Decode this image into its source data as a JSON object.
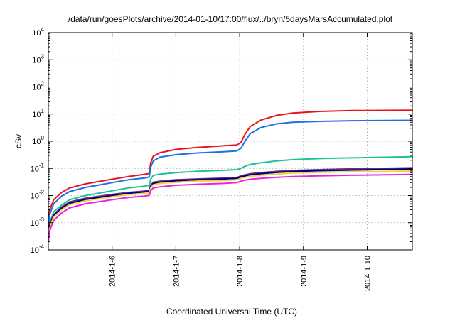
{
  "chart_data": {
    "type": "line",
    "title": "/data/run/goesPlots/archive/2014-01-10/17:00/flux/../bryn/5daysMarsAccumulated.plot",
    "xlabel": "Coordinated Universal Time (UTC)",
    "ylabel": "cSv",
    "yscale": "log",
    "ylim": [
      0.0001,
      10000
    ],
    "xlim": [
      "2014-01-05 00:00",
      "2014-01-10 17:00"
    ],
    "x_ticks": [
      "2014-1-6",
      "2014-1-7",
      "2014-1-8",
      "2014-1-9",
      "2014-1-10"
    ],
    "y_ticks": [
      {
        "base": "10",
        "exp": "-4",
        "value": 0.0001
      },
      {
        "base": "10",
        "exp": "-3",
        "value": 0.001
      },
      {
        "base": "10",
        "exp": "-2",
        "value": 0.01
      },
      {
        "base": "10",
        "exp": "-1",
        "value": 0.1
      },
      {
        "base": "10",
        "exp": "0",
        "value": 1
      },
      {
        "base": "10",
        "exp": "1",
        "value": 10
      },
      {
        "base": "10",
        "exp": "2",
        "value": 100
      },
      {
        "base": "10",
        "exp": "3",
        "value": 1000
      },
      {
        "base": "10",
        "exp": "4",
        "value": 10000
      }
    ],
    "grid": true,
    "series": [
      {
        "color": "#e8141b",
        "points": [
          [
            "2014-01-05 00:00",
            0.0012
          ],
          [
            "2014-01-05 00:30",
            0.003
          ],
          [
            "2014-01-05 02:00",
            0.007
          ],
          [
            "2014-01-05 05:00",
            0.013
          ],
          [
            "2014-01-05 08:00",
            0.019
          ],
          [
            "2014-01-05 14:00",
            0.027
          ],
          [
            "2014-01-06 00:00",
            0.04
          ],
          [
            "2014-01-06 06:00",
            0.05
          ],
          [
            "2014-01-06 12:00",
            0.06
          ],
          [
            "2014-01-06 14:00",
            0.065
          ],
          [
            "2014-01-06 14:30",
            0.16
          ],
          [
            "2014-01-06 15:30",
            0.28
          ],
          [
            "2014-01-06 18:00",
            0.38
          ],
          [
            "2014-01-07 00:00",
            0.5
          ],
          [
            "2014-01-07 08:00",
            0.59
          ],
          [
            "2014-01-07 18:00",
            0.68
          ],
          [
            "2014-01-07 23:00",
            0.73
          ],
          [
            "2014-01-08 00:30",
            0.9
          ],
          [
            "2014-01-08 02:00",
            1.8
          ],
          [
            "2014-01-08 04:00",
            3.5
          ],
          [
            "2014-01-08 08:00",
            6.0
          ],
          [
            "2014-01-08 14:00",
            9.0
          ],
          [
            "2014-01-08 20:00",
            11.0
          ],
          [
            "2014-01-09 06:00",
            12.5
          ],
          [
            "2014-01-09 18:00",
            13.5
          ],
          [
            "2014-01-10 17:00",
            14.0
          ]
        ]
      },
      {
        "color": "#1f6fe5",
        "points": [
          [
            "2014-01-05 00:00",
            0.0008
          ],
          [
            "2014-01-05 00:30",
            0.002
          ],
          [
            "2014-01-05 02:00",
            0.005
          ],
          [
            "2014-01-05 05:00",
            0.0095
          ],
          [
            "2014-01-05 08:00",
            0.014
          ],
          [
            "2014-01-05 14:00",
            0.02
          ],
          [
            "2014-01-06 00:00",
            0.03
          ],
          [
            "2014-01-06 06:00",
            0.038
          ],
          [
            "2014-01-06 12:00",
            0.044
          ],
          [
            "2014-01-06 14:00",
            0.048
          ],
          [
            "2014-01-06 14:30",
            0.11
          ],
          [
            "2014-01-06 15:30",
            0.19
          ],
          [
            "2014-01-06 18:00",
            0.26
          ],
          [
            "2014-01-07 00:00",
            0.32
          ],
          [
            "2014-01-07 08:00",
            0.37
          ],
          [
            "2014-01-07 18:00",
            0.41
          ],
          [
            "2014-01-07 23:00",
            0.44
          ],
          [
            "2014-01-08 00:30",
            0.55
          ],
          [
            "2014-01-08 02:00",
            1.0
          ],
          [
            "2014-01-08 04:00",
            1.9
          ],
          [
            "2014-01-08 08:00",
            3.2
          ],
          [
            "2014-01-08 14:00",
            4.4
          ],
          [
            "2014-01-08 20:00",
            5.0
          ],
          [
            "2014-01-09 06:00",
            5.4
          ],
          [
            "2014-01-09 18:00",
            5.7
          ],
          [
            "2014-01-10 17:00",
            5.9
          ]
        ]
      },
      {
        "color": "#19c49a",
        "points": [
          [
            "2014-01-05 00:00",
            0.0004
          ],
          [
            "2014-01-05 00:30",
            0.001
          ],
          [
            "2014-01-05 02:00",
            0.0025
          ],
          [
            "2014-01-05 05:00",
            0.0045
          ],
          [
            "2014-01-05 08:00",
            0.007
          ],
          [
            "2014-01-05 14:00",
            0.01
          ],
          [
            "2014-01-06 00:00",
            0.015
          ],
          [
            "2014-01-06 06:00",
            0.019
          ],
          [
            "2014-01-06 12:00",
            0.022
          ],
          [
            "2014-01-06 14:00",
            0.024
          ],
          [
            "2014-01-06 14:30",
            0.04
          ],
          [
            "2014-01-06 15:30",
            0.055
          ],
          [
            "2014-01-06 18:00",
            0.062
          ],
          [
            "2014-01-07 00:00",
            0.07
          ],
          [
            "2014-01-07 08:00",
            0.078
          ],
          [
            "2014-01-07 18:00",
            0.085
          ],
          [
            "2014-01-07 23:00",
            0.09
          ],
          [
            "2014-01-08 00:30",
            0.1
          ],
          [
            "2014-01-08 02:00",
            0.12
          ],
          [
            "2014-01-08 04:00",
            0.14
          ],
          [
            "2014-01-08 08:00",
            0.16
          ],
          [
            "2014-01-08 14:00",
            0.19
          ],
          [
            "2014-01-08 20:00",
            0.21
          ],
          [
            "2014-01-09 06:00",
            0.23
          ],
          [
            "2014-01-09 18:00",
            0.245
          ],
          [
            "2014-01-10 17:00",
            0.27
          ]
        ]
      },
      {
        "color": "#6a2a86",
        "points": [
          [
            "2014-01-05 00:00",
            0.0004
          ],
          [
            "2014-01-05 00:30",
            0.0009
          ],
          [
            "2014-01-05 02:00",
            0.002
          ],
          [
            "2014-01-05 05:00",
            0.0038
          ],
          [
            "2014-01-05 08:00",
            0.0058
          ],
          [
            "2014-01-05 14:00",
            0.008
          ],
          [
            "2014-01-06 00:00",
            0.011
          ],
          [
            "2014-01-06 06:00",
            0.013
          ],
          [
            "2014-01-06 12:00",
            0.0145
          ],
          [
            "2014-01-06 14:00",
            0.0155
          ],
          [
            "2014-01-06 14:30",
            0.024
          ],
          [
            "2014-01-06 15:30",
            0.031
          ],
          [
            "2014-01-06 18:00",
            0.034
          ],
          [
            "2014-01-07 00:00",
            0.038
          ],
          [
            "2014-01-07 08:00",
            0.041
          ],
          [
            "2014-01-07 18:00",
            0.044
          ],
          [
            "2014-01-07 23:00",
            0.046
          ],
          [
            "2014-01-08 00:30",
            0.053
          ],
          [
            "2014-01-08 02:00",
            0.058
          ],
          [
            "2014-01-08 04:00",
            0.064
          ],
          [
            "2014-01-08 08:00",
            0.07
          ],
          [
            "2014-01-08 14:00",
            0.078
          ],
          [
            "2014-01-08 20:00",
            0.084
          ],
          [
            "2014-01-09 06:00",
            0.09
          ],
          [
            "2014-01-09 18:00",
            0.096
          ],
          [
            "2014-01-10 17:00",
            0.105
          ]
        ]
      },
      {
        "color": "#000080",
        "points": [
          [
            "2014-01-05 00:00",
            0.00035
          ],
          [
            "2014-01-05 00:30",
            0.0008
          ],
          [
            "2014-01-05 02:00",
            0.0018
          ],
          [
            "2014-01-05 05:00",
            0.0034
          ],
          [
            "2014-01-05 08:00",
            0.0052
          ],
          [
            "2014-01-05 14:00",
            0.0072
          ],
          [
            "2014-01-06 00:00",
            0.01
          ],
          [
            "2014-01-06 06:00",
            0.012
          ],
          [
            "2014-01-06 12:00",
            0.0135
          ],
          [
            "2014-01-06 14:00",
            0.0145
          ],
          [
            "2014-01-06 14:30",
            0.022
          ],
          [
            "2014-01-06 15:30",
            0.028
          ],
          [
            "2014-01-06 18:00",
            0.031
          ],
          [
            "2014-01-07 00:00",
            0.035
          ],
          [
            "2014-01-07 08:00",
            0.038
          ],
          [
            "2014-01-07 18:00",
            0.041
          ],
          [
            "2014-01-07 23:00",
            0.043
          ],
          [
            "2014-01-08 00:30",
            0.049
          ],
          [
            "2014-01-08 02:00",
            0.053
          ],
          [
            "2014-01-08 04:00",
            0.058
          ],
          [
            "2014-01-08 08:00",
            0.064
          ],
          [
            "2014-01-08 14:00",
            0.071
          ],
          [
            "2014-01-08 20:00",
            0.077
          ],
          [
            "2014-01-09 06:00",
            0.082
          ],
          [
            "2014-01-09 18:00",
            0.087
          ],
          [
            "2014-01-10 17:00",
            0.095
          ]
        ]
      },
      {
        "color": "#f2d43a",
        "points": [
          [
            "2014-01-05 00:00",
            0.0003
          ],
          [
            "2014-01-05 00:30",
            0.0007
          ],
          [
            "2014-01-05 02:00",
            0.0016
          ],
          [
            "2014-01-05 05:00",
            0.003
          ],
          [
            "2014-01-05 08:00",
            0.0046
          ],
          [
            "2014-01-05 14:00",
            0.0064
          ],
          [
            "2014-01-06 00:00",
            0.009
          ],
          [
            "2014-01-06 06:00",
            0.0108
          ],
          [
            "2014-01-06 12:00",
            0.012
          ],
          [
            "2014-01-06 14:00",
            0.013
          ],
          [
            "2014-01-06 14:30",
            0.019
          ],
          [
            "2014-01-06 15:30",
            0.025
          ],
          [
            "2014-01-06 18:00",
            0.028
          ],
          [
            "2014-01-07 00:00",
            0.031
          ],
          [
            "2014-01-07 08:00",
            0.034
          ],
          [
            "2014-01-07 18:00",
            0.036
          ],
          [
            "2014-01-07 23:00",
            0.038
          ],
          [
            "2014-01-08 00:30",
            0.043
          ],
          [
            "2014-01-08 02:00",
            0.047
          ],
          [
            "2014-01-08 04:00",
            0.051
          ],
          [
            "2014-01-08 08:00",
            0.056
          ],
          [
            "2014-01-08 14:00",
            0.062
          ],
          [
            "2014-01-08 20:00",
            0.067
          ],
          [
            "2014-01-09 06:00",
            0.071
          ],
          [
            "2014-01-09 18:00",
            0.075
          ],
          [
            "2014-01-10 17:00",
            0.08
          ]
        ]
      },
      {
        "color": "#ee22dd",
        "points": [
          [
            "2014-01-05 00:00",
            0.0002
          ],
          [
            "2014-01-05 00:30",
            0.0005
          ],
          [
            "2014-01-05 02:00",
            0.0012
          ],
          [
            "2014-01-05 05:00",
            0.0023
          ],
          [
            "2014-01-05 08:00",
            0.0035
          ],
          [
            "2014-01-05 14:00",
            0.005
          ],
          [
            "2014-01-06 00:00",
            0.007
          ],
          [
            "2014-01-06 06:00",
            0.0085
          ],
          [
            "2014-01-06 12:00",
            0.0095
          ],
          [
            "2014-01-06 14:00",
            0.0102
          ],
          [
            "2014-01-06 14:30",
            0.015
          ],
          [
            "2014-01-06 15:30",
            0.019
          ],
          [
            "2014-01-06 18:00",
            0.021
          ],
          [
            "2014-01-07 00:00",
            0.024
          ],
          [
            "2014-01-07 08:00",
            0.026
          ],
          [
            "2014-01-07 18:00",
            0.028
          ],
          [
            "2014-01-07 23:00",
            0.03
          ],
          [
            "2014-01-08 00:30",
            0.034
          ],
          [
            "2014-01-08 02:00",
            0.037
          ],
          [
            "2014-01-08 04:00",
            0.04
          ],
          [
            "2014-01-08 08:00",
            0.043
          ],
          [
            "2014-01-08 14:00",
            0.047
          ],
          [
            "2014-01-08 20:00",
            0.05
          ],
          [
            "2014-01-09 06:00",
            0.053
          ],
          [
            "2014-01-09 18:00",
            0.056
          ],
          [
            "2014-01-10 17:00",
            0.06
          ]
        ]
      }
    ]
  }
}
